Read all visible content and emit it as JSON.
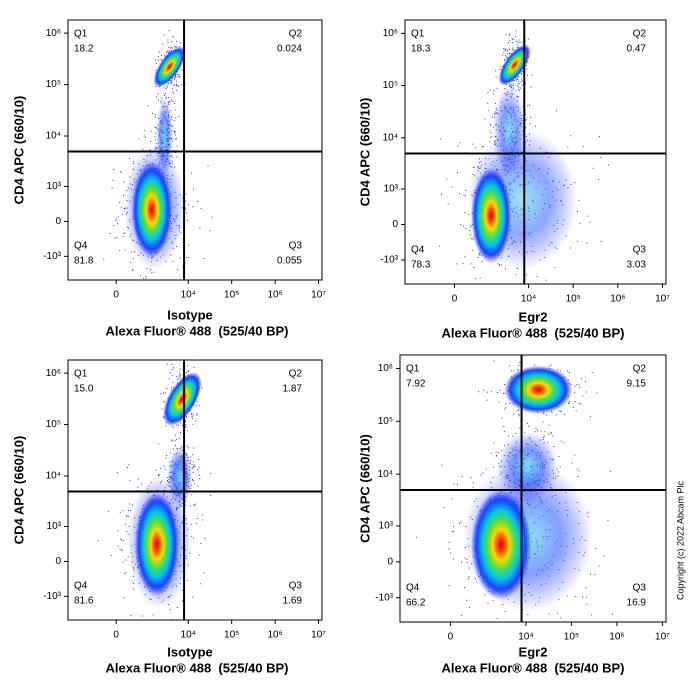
{
  "chart_data": [
    {
      "type": "density",
      "sample": "Isotype",
      "x_label": "Alexa Fluor® 488  (525/40 BP)",
      "y_label": "CD4 APC (660/10)",
      "quadrants": [
        "Q1",
        "Q2",
        "Q3",
        "Q4"
      ],
      "values": [
        18.2,
        0.024,
        0.055,
        81.8
      ],
      "xscale": "biexponential",
      "yscale": "biexponential",
      "xlim": [
        -2800,
        12000000
      ],
      "ylim": [
        -3000,
        1800000
      ],
      "xticks": [
        0,
        {
          "value": 10000,
          "label": "10⁴"
        },
        {
          "value": 100000,
          "label": "10⁵"
        },
        {
          "value": 1000000,
          "label": "10⁶"
        },
        {
          "value": 10000000,
          "label": "10⁷"
        }
      ],
      "yticks": [
        {
          "value": -1000,
          "label": "-10³"
        },
        0,
        {
          "value": 1000,
          "label": "10³"
        },
        {
          "value": 10000,
          "label": "10⁴"
        },
        {
          "value": 100000,
          "label": "10⁵"
        },
        {
          "value": 1000000,
          "label": "10⁶"
        }
      ],
      "gates": {
        "x": 8000,
        "y": 5000
      }
    },
    {
      "type": "density",
      "sample": "Egr2",
      "x_label": "Alexa Fluor® 488  (525/40 BP)",
      "y_label": "CD4 APC (660/10)",
      "quadrants": [
        "Q1",
        "Q2",
        "Q3",
        "Q4"
      ],
      "values": [
        18.3,
        0.47,
        3.03,
        78.3
      ],
      "xscale": "biexponential",
      "yscale": "biexponential",
      "xlim": [
        -2800,
        12000000
      ],
      "ylim": [
        -3000,
        1800000
      ],
      "xticks": [
        0,
        {
          "value": 10000,
          "label": "10⁴"
        },
        {
          "value": 100000,
          "label": "10⁵"
        },
        {
          "value": 1000000,
          "label": "10⁶"
        },
        {
          "value": 10000000,
          "label": "10⁷"
        }
      ],
      "yticks": [
        {
          "value": -1000,
          "label": "-10³"
        },
        0,
        {
          "value": 1000,
          "label": "10³"
        },
        {
          "value": 10000,
          "label": "10⁴"
        },
        {
          "value": 100000,
          "label": "10⁵"
        },
        {
          "value": 1000000,
          "label": "10⁶"
        }
      ],
      "gates": {
        "x": 8000,
        "y": 5000
      }
    },
    {
      "type": "density",
      "sample": "Isotype",
      "x_label": "Alexa Fluor® 488  (525/40 BP)",
      "y_label": "CD4 APC (660/10)",
      "quadrants": [
        "Q1",
        "Q2",
        "Q3",
        "Q4"
      ],
      "values": [
        15.0,
        1.87,
        1.69,
        81.6
      ],
      "value_labels": [
        "15.0",
        "1.87",
        "1.69",
        "81.6"
      ],
      "xscale": "biexponential",
      "yscale": "biexponential",
      "xlim": [
        -2800,
        12000000
      ],
      "ylim": [
        -3000,
        1800000
      ],
      "xticks": [
        0,
        {
          "value": 10000,
          "label": "10⁴"
        },
        {
          "value": 100000,
          "label": "10⁵"
        },
        {
          "value": 1000000,
          "label": "10⁶"
        },
        {
          "value": 10000000,
          "label": "10⁷"
        }
      ],
      "yticks": [
        {
          "value": -1000,
          "label": "-10³"
        },
        0,
        {
          "value": 1000,
          "label": "10³"
        },
        {
          "value": 10000,
          "label": "10⁴"
        },
        {
          "value": 100000,
          "label": "10⁵"
        },
        {
          "value": 1000000,
          "label": "10⁶"
        }
      ],
      "gates": {
        "x": 8000,
        "y": 5000
      }
    },
    {
      "type": "density",
      "sample": "Egr2",
      "x_label": "Alexa Fluor® 488  (525/40 BP)",
      "y_label": "CD4 APC (660/10)",
      "quadrants": [
        "Q1",
        "Q2",
        "Q3",
        "Q4"
      ],
      "values": [
        7.92,
        9.15,
        16.9,
        66.2
      ],
      "xscale": "biexponential",
      "yscale": "biexponential",
      "xlim": [
        -2800,
        12000000
      ],
      "ylim": [
        -3000,
        1800000
      ],
      "xticks": [
        0,
        {
          "value": 10000,
          "label": "10⁴"
        },
        {
          "value": 100000,
          "label": "10⁵"
        },
        {
          "value": 1000000,
          "label": "10⁶"
        },
        {
          "value": 10000000,
          "label": "10⁷"
        }
      ],
      "yticks": [
        {
          "value": -1000,
          "label": "-10³"
        },
        0,
        {
          "value": 1000,
          "label": "10³"
        },
        {
          "value": 10000,
          "label": "10⁴"
        },
        {
          "value": 100000,
          "label": "10⁵"
        },
        {
          "value": 1000000,
          "label": "10⁶"
        }
      ],
      "gates": {
        "x": 8000,
        "y": 5000
      }
    }
  ],
  "copyright": "Copyright (c) 2022 Abcam Plc"
}
